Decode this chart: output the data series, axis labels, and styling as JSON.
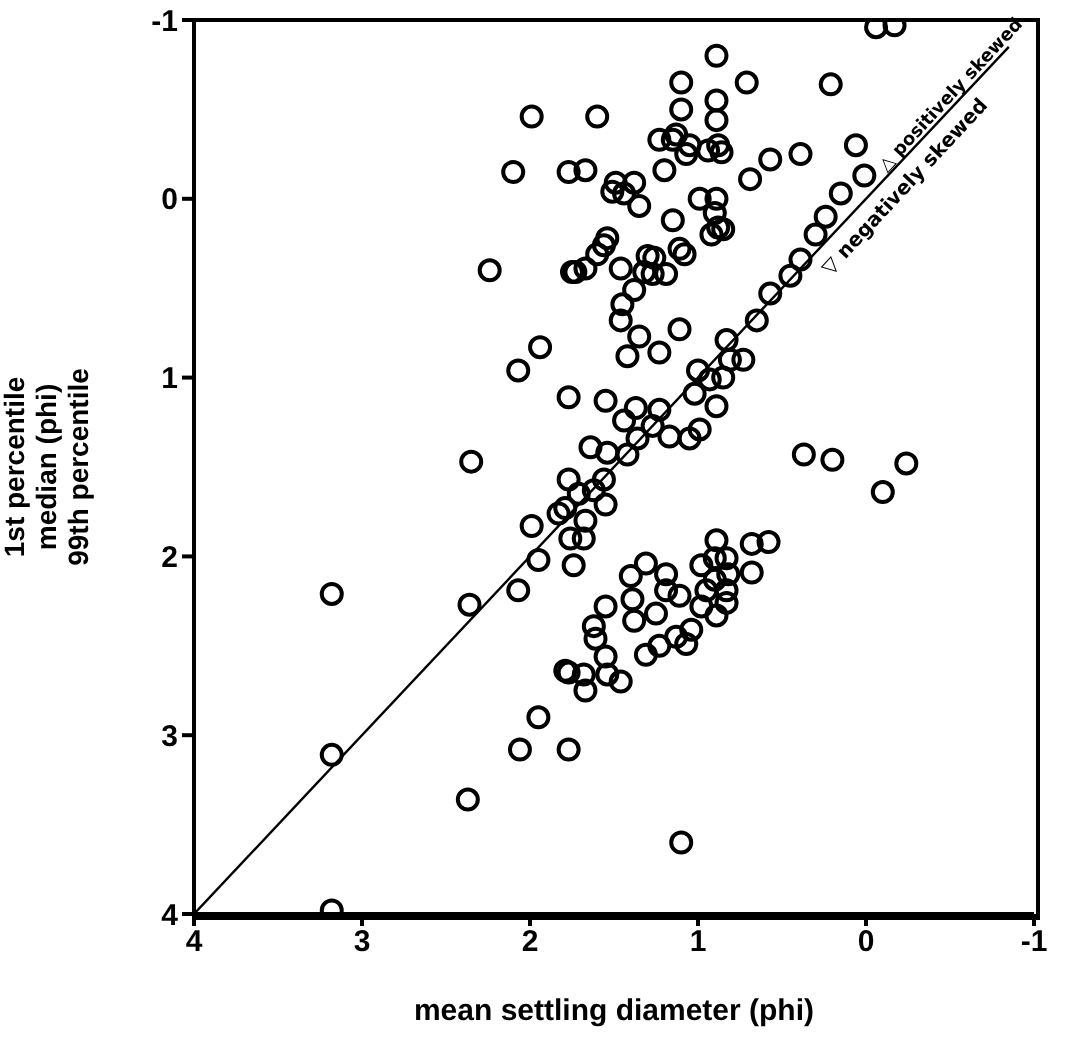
{
  "chart_data": {
    "type": "scatter",
    "xlabel": "mean settling diameter (phi)",
    "ylabel": "1st percentile\nmedian (phi)\n99th percentile",
    "xlim": [
      4,
      -1
    ],
    "xticks": [
      4,
      3,
      2,
      1,
      0,
      -1
    ],
    "ylim": [
      4,
      -1
    ],
    "yticks": [
      -1,
      0,
      1,
      2,
      3,
      4
    ],
    "marker": "circle",
    "annotations": [
      "△ positively skewed",
      "▽ negatively skewed"
    ],
    "series": [
      {
        "color": "#000000",
        "x": [
          0.89,
          1.1,
          0.71,
          0.21,
          1.6,
          1.1,
          0.89,
          0.89,
          1.13,
          0.88,
          1.15,
          1.07,
          1.23,
          1.2,
          1.05,
          0.94,
          0.86,
          0.57,
          0.69,
          0.39,
          0.06,
          1.67,
          1.77,
          1.49,
          1.44,
          1.38,
          1.51,
          1.35,
          0.89,
          0.99,
          0.9,
          0.88,
          0.85,
          1.15,
          1.54,
          1.6,
          1.56,
          1.67,
          1.73,
          1.46,
          1.3,
          1.27,
          1.32,
          1.19,
          1.38,
          1.45,
          1.08,
          1.26,
          2.1,
          2.24,
          1.99,
          1.75,
          1.11,
          0.92,
          -0.06,
          -0.17,
          1.46,
          1.35,
          1.11,
          1.23,
          1.42,
          1.0,
          0.93,
          1.02,
          0.89,
          0.85,
          0.83,
          0.81,
          0.73,
          0.65,
          0.57,
          0.45,
          0.39,
          0.3,
          0.24,
          0.15,
          0.01,
          1.55,
          1.37,
          1.23,
          1.44,
          1.27,
          1.36,
          1.17,
          1.05,
          0.99,
          1.64,
          1.54,
          1.42,
          1.77,
          1.56,
          1.62,
          1.71,
          1.55,
          1.79,
          1.83,
          1.67,
          1.68,
          1.76,
          1.99,
          1.95,
          2.07,
          2.36,
          3.18,
          1.77,
          2.07,
          1.94,
          2.35,
          3.18,
          2.37,
          2.06,
          1.95,
          1.77,
          1.77,
          3.18,
          0.89,
          0.68,
          0.58,
          0.68,
          0.98,
          0.9,
          0.83,
          0.82,
          0.9,
          0.83,
          0.95,
          0.83,
          0.89,
          0.98,
          1.04,
          1.07,
          1.13,
          1.23,
          1.31,
          1.31,
          1.4,
          1.39,
          1.38,
          1.25,
          1.19,
          1.11,
          1.19,
          1.55,
          1.62,
          1.61,
          1.55,
          1.54,
          1.46,
          1.79,
          1.68,
          1.67,
          1.74,
          0.37,
          0.2,
          -0.1,
          -0.24,
          1.1
        ],
        "values": [
          -0.8,
          -0.65,
          -0.65,
          -0.64,
          -0.46,
          -0.5,
          -0.55,
          -0.44,
          -0.36,
          -0.3,
          -0.33,
          -0.25,
          -0.33,
          -0.16,
          -0.3,
          -0.27,
          -0.26,
          -0.22,
          -0.11,
          -0.25,
          -0.3,
          -0.16,
          -0.15,
          -0.09,
          -0.03,
          -0.09,
          -0.04,
          0.04,
          0.0,
          0.0,
          0.08,
          0.16,
          0.17,
          0.12,
          0.22,
          0.31,
          0.26,
          0.39,
          0.41,
          0.39,
          0.32,
          0.42,
          0.41,
          0.42,
          0.51,
          0.59,
          0.31,
          0.33,
          -0.15,
          0.4,
          -0.46,
          0.41,
          0.28,
          0.2,
          -0.96,
          -0.97,
          0.68,
          0.77,
          0.73,
          0.86,
          0.88,
          0.96,
          1.01,
          1.09,
          1.16,
          1.0,
          0.79,
          0.9,
          0.9,
          0.68,
          0.53,
          0.43,
          0.34,
          0.2,
          0.1,
          -0.03,
          -0.13,
          1.13,
          1.17,
          1.18,
          1.24,
          1.27,
          1.34,
          1.33,
          1.34,
          1.29,
          1.39,
          1.42,
          1.43,
          1.57,
          1.57,
          1.63,
          1.65,
          1.71,
          1.73,
          1.76,
          1.8,
          1.9,
          1.9,
          1.83,
          2.02,
          2.19,
          2.27,
          2.21,
          1.11,
          0.96,
          0.83,
          1.47,
          3.11,
          3.36,
          3.08,
          2.9,
          3.08,
          2.65,
          3.98,
          1.91,
          1.93,
          1.92,
          2.09,
          2.05,
          2.01,
          2.01,
          2.1,
          2.13,
          2.19,
          2.19,
          2.26,
          2.33,
          2.28,
          2.41,
          2.49,
          2.45,
          2.5,
          2.55,
          2.04,
          2.11,
          2.24,
          2.36,
          2.32,
          2.1,
          2.22,
          2.19,
          2.28,
          2.39,
          2.46,
          2.56,
          2.66,
          2.7,
          2.64,
          2.66,
          2.75,
          2.05,
          1.43,
          1.46,
          1.64,
          1.48,
          3.6
        ]
      },
      {
        "type": "line",
        "color": "#000000",
        "marker": "none",
        "x": [
          4,
          -0.85
        ],
        "values": [
          4,
          -0.85
        ]
      }
    ]
  }
}
